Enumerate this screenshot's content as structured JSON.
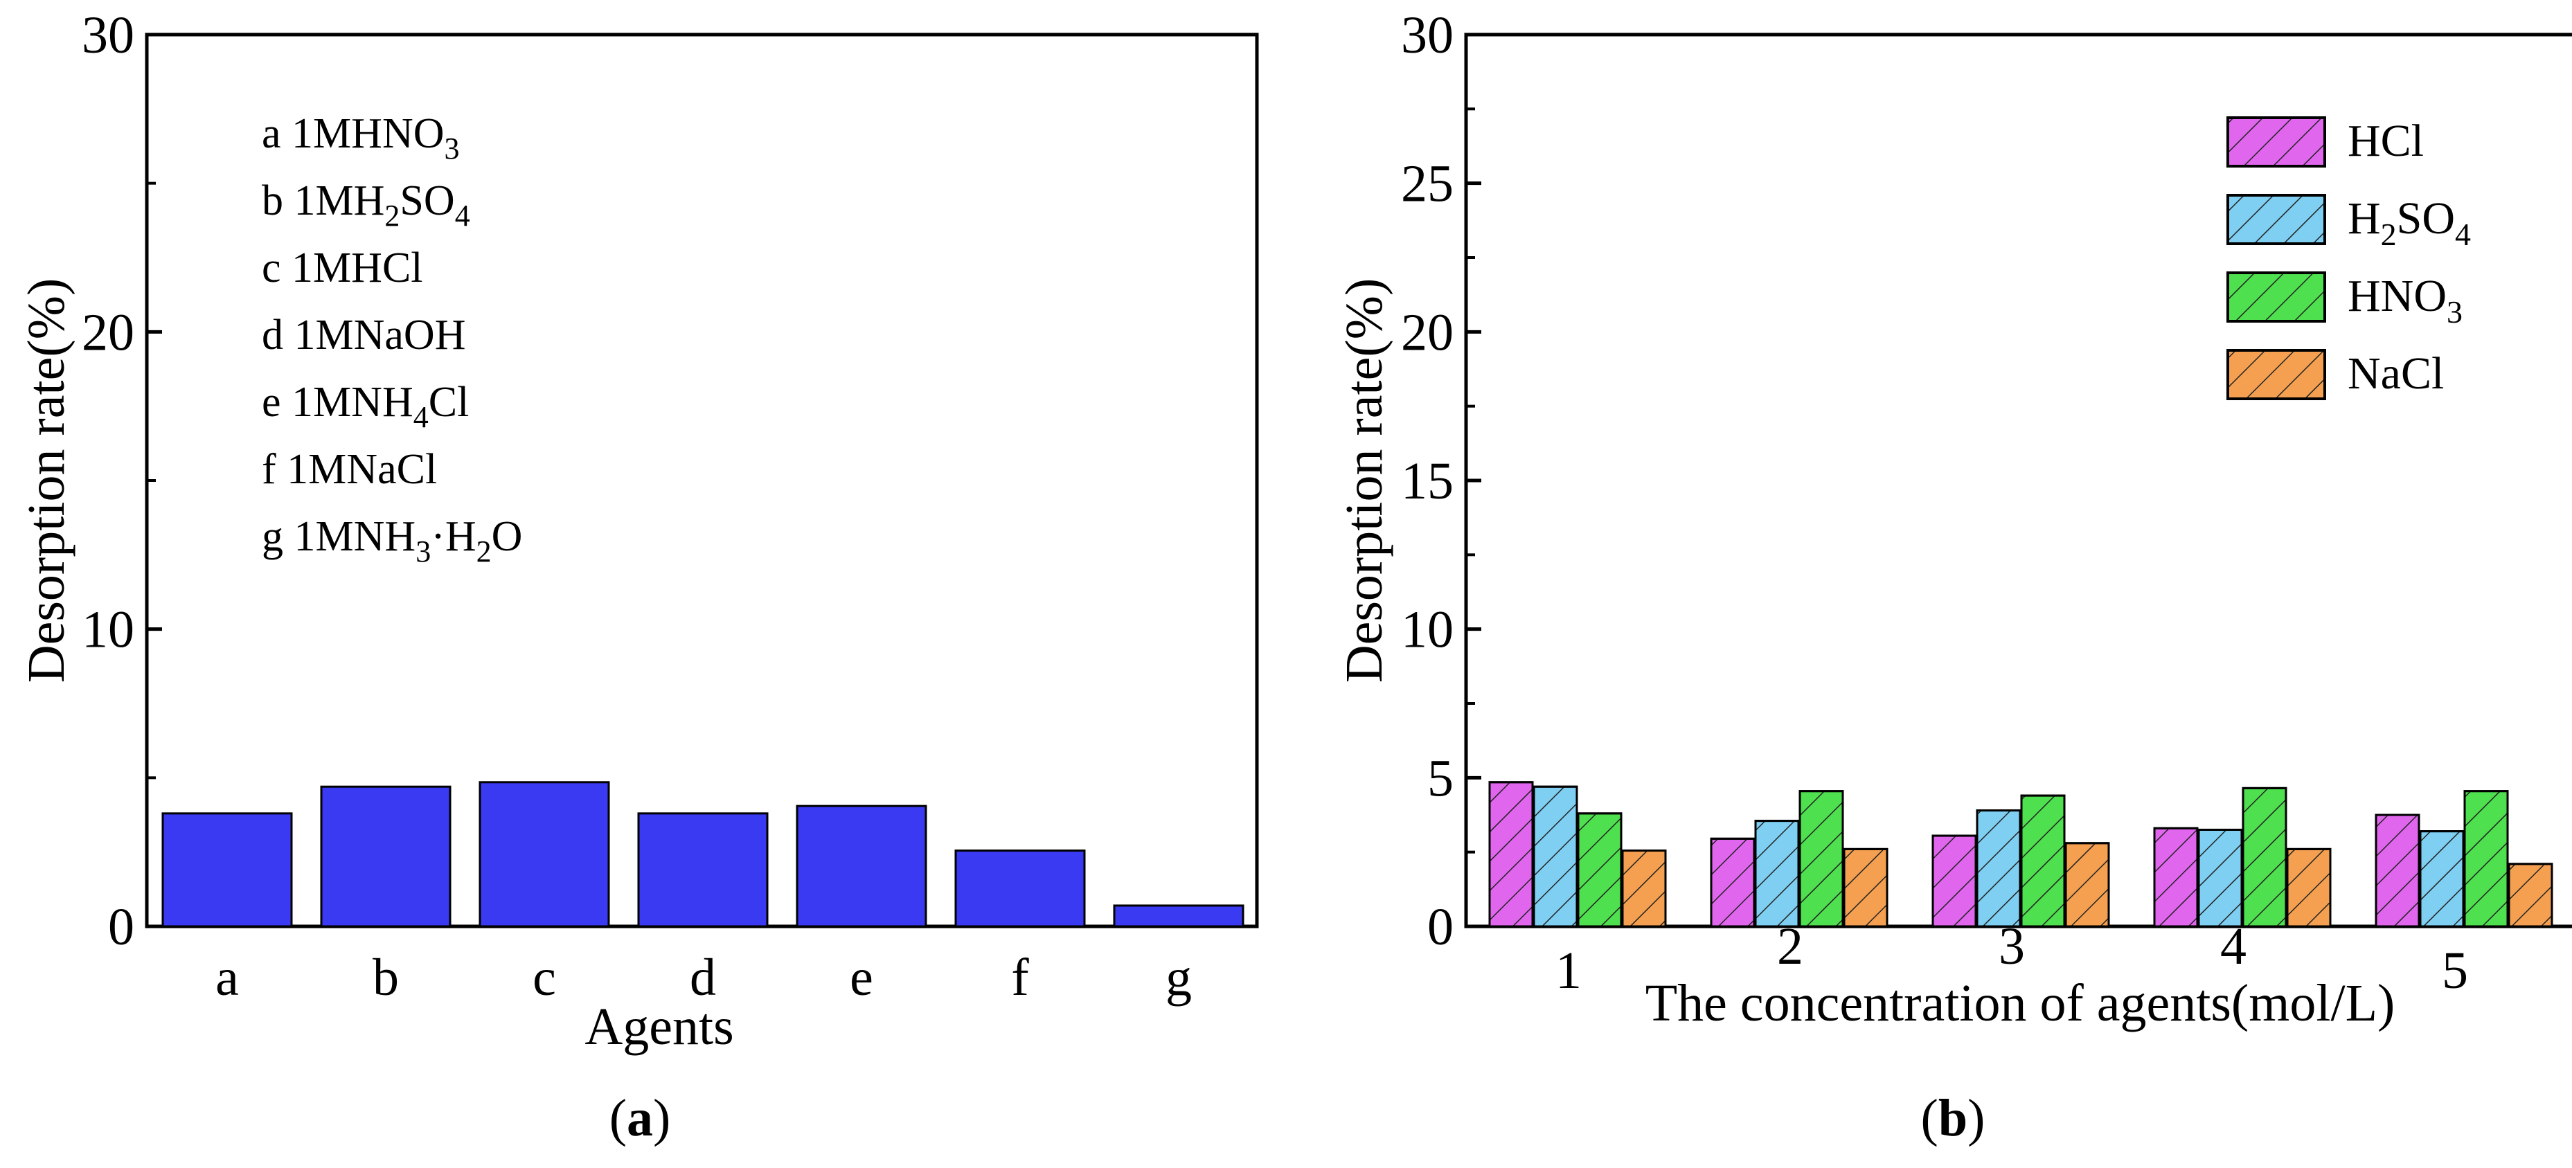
{
  "colors": {
    "bar_a": "#3a3af2",
    "hcl": "#e066ee",
    "h2so4": "#7ecff2",
    "hno3": "#4ee04e",
    "nacl": "#f5a050",
    "axis": "#000000"
  },
  "panel_a": {
    "caption_open": "(",
    "caption_letter": "a",
    "caption_close": ")",
    "ylabel": "Desorption rate(%)",
    "xlabel": "Agents",
    "yticks": [
      "0",
      "10",
      "20",
      "30"
    ],
    "legend": [
      {
        "letter": "a",
        "conc": "1M",
        "formula": [
          [
            "HNO",
            false
          ],
          [
            "3",
            true
          ]
        ]
      },
      {
        "letter": "b",
        "conc": "1M",
        "formula": [
          [
            "H",
            false
          ],
          [
            "2",
            true
          ],
          [
            "SO",
            false
          ],
          [
            "4",
            true
          ]
        ]
      },
      {
        "letter": "c",
        "conc": "1M",
        "formula": [
          [
            "HCl",
            false
          ]
        ]
      },
      {
        "letter": "d",
        "conc": "1M",
        "formula": [
          [
            "NaOH",
            false
          ]
        ]
      },
      {
        "letter": "e",
        "conc": "1M",
        "formula": [
          [
            "NH",
            false
          ],
          [
            "4",
            true
          ],
          [
            "Cl",
            false
          ]
        ]
      },
      {
        "letter": "f",
        "conc": "1M",
        "formula": [
          [
            "NaCl",
            false
          ]
        ]
      },
      {
        "letter": "g",
        "conc": "1M",
        "formula": [
          [
            "NH",
            false
          ],
          [
            "3",
            true
          ],
          [
            "·H",
            false
          ],
          [
            "2",
            true
          ],
          [
            "O",
            false
          ]
        ]
      }
    ]
  },
  "panel_b": {
    "caption_open": "(",
    "caption_letter": "b",
    "caption_close": ")",
    "ylabel": "Desorption rate(%)",
    "xlabel": "The concentration of agents(mol/L)",
    "yticks": [
      "0",
      "5",
      "10",
      "15",
      "20",
      "25",
      "30"
    ],
    "legend": [
      {
        "key": "hcl",
        "formula": [
          [
            "HCl",
            false
          ]
        ]
      },
      {
        "key": "h2so4",
        "formula": [
          [
            "H",
            false
          ],
          [
            "2",
            true
          ],
          [
            "SO",
            false
          ],
          [
            "4",
            true
          ]
        ]
      },
      {
        "key": "hno3",
        "formula": [
          [
            "HNO",
            false
          ],
          [
            "3",
            true
          ]
        ]
      },
      {
        "key": "nacl",
        "formula": [
          [
            "NaCl",
            false
          ]
        ]
      }
    ]
  },
  "chart_data": [
    {
      "type": "bar",
      "title": "",
      "xlabel": "Agents",
      "ylabel": "Desorption rate(%)",
      "ylim": [
        0,
        30
      ],
      "categories": [
        "a",
        "b",
        "c",
        "d",
        "e",
        "f",
        "g"
      ],
      "values": [
        3.8,
        4.7,
        4.85,
        3.8,
        4.05,
        2.55,
        0.7
      ]
    },
    {
      "type": "bar",
      "title": "",
      "xlabel": "The concentration of agents(mol/L)",
      "ylabel": "Desorption rate(%)",
      "ylim": [
        0,
        30
      ],
      "categories": [
        "1",
        "2",
        "3",
        "4",
        "5"
      ],
      "series": [
        {
          "name": "HCl",
          "values": [
            4.85,
            2.95,
            3.05,
            3.3,
            3.75
          ]
        },
        {
          "name": "H2SO4",
          "values": [
            4.7,
            3.55,
            3.9,
            3.25,
            3.2
          ]
        },
        {
          "name": "HNO3",
          "values": [
            3.8,
            4.55,
            4.4,
            4.65,
            4.55
          ]
        },
        {
          "name": "NaCl",
          "values": [
            2.55,
            2.6,
            2.8,
            2.6,
            2.1
          ]
        }
      ]
    }
  ]
}
